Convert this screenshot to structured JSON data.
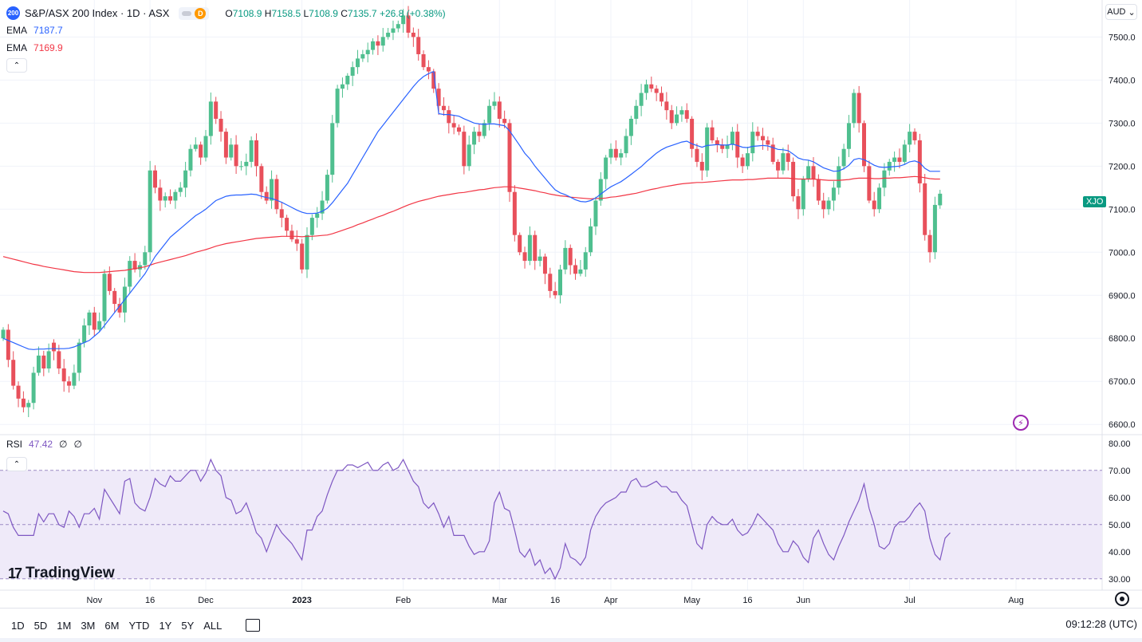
{
  "header": {
    "badge": "200",
    "title": "S&P/ASX 200 Index · 1D · ASX",
    "interval_icon": "D",
    "ohlc": {
      "o_label": "O",
      "o": "7108.9",
      "h_label": "H",
      "h": "7158.5",
      "l_label": "L",
      "l": "7108.9",
      "c_label": "C",
      "c": "7135.7",
      "change": "+26.8 (+0.38%)"
    },
    "ema1_label": "EMA",
    "ema1_value": "7187.7",
    "ema2_label": "EMA",
    "ema2_value": "7169.9",
    "collapse_glyph": "⌃"
  },
  "currency": {
    "label": "AUD",
    "arrow": "⌄"
  },
  "symbol_tag": "XJO",
  "rsi_legend": {
    "label": "RSI",
    "value": "47.42",
    "extra1": "∅",
    "extra2": "∅"
  },
  "brand": {
    "mark": "17",
    "name": "TradingView"
  },
  "bottom": {
    "ranges": [
      "1D",
      "5D",
      "1M",
      "3M",
      "6M",
      "YTD",
      "1Y",
      "5Y",
      "ALL"
    ],
    "clock": "09:12:28 (UTC)"
  },
  "colors": {
    "up": "#089981",
    "up_fill": "#4fbf8f",
    "down": "#f23645",
    "down_fill": "#e8505b",
    "ema_fast": "#2962ff",
    "ema_slow": "#f23645",
    "rsi": "#7e57c2",
    "rsi_band": "#efeaf9"
  },
  "icons": {
    "brand": "tradingview-logo-icon",
    "alert": "lightning-icon",
    "settings": "gear-icon",
    "calendar": "calendar-icon"
  },
  "chart_data": [
    {
      "type": "candlestick",
      "y_ticks": [
        6600,
        6700,
        6800,
        6900,
        7000,
        7100,
        7200,
        7300,
        7400,
        7500
      ],
      "y_tick_labels": [
        "6600.0",
        "6700.0",
        "6800.0",
        "6900.0",
        "7000.0",
        "7100.0",
        "7200.0",
        "7300.0",
        "7400.0",
        "7500.0"
      ],
      "ylim": [
        6580,
        7560
      ],
      "x_ticks": [
        {
          "label": "Nov",
          "bar": 18
        },
        {
          "label": "16",
          "bar": 29
        },
        {
          "label": "Dec",
          "bar": 40
        },
        {
          "label": "2023",
          "bar": 59
        },
        {
          "label": "Feb",
          "bar": 79
        },
        {
          "label": "Mar",
          "bar": 98
        },
        {
          "label": "16",
          "bar": 109
        },
        {
          "label": "Apr",
          "bar": 120
        },
        {
          "label": "May",
          "bar": 136
        },
        {
          "label": "16",
          "bar": 147
        },
        {
          "label": "Jun",
          "bar": 158
        },
        {
          "label": "Jul",
          "bar": 179
        },
        {
          "label": "Aug",
          "bar": 200
        }
      ],
      "close": [
        6820,
        6750,
        6690,
        6660,
        6640,
        6650,
        6720,
        6760,
        6730,
        6770,
        6770,
        6730,
        6700,
        6690,
        6720,
        6790,
        6830,
        6860,
        6820,
        6840,
        6950,
        6910,
        6880,
        6860,
        6920,
        6980,
        6960,
        6970,
        7000,
        7190,
        7150,
        7120,
        7130,
        7120,
        7140,
        7150,
        7190,
        7240,
        7250,
        7220,
        7270,
        7350,
        7310,
        7280,
        7220,
        7250,
        7200,
        7200,
        7210,
        7260,
        7200,
        7140,
        7120,
        7170,
        7100,
        7080,
        7050,
        7030,
        7020,
        6960,
        7040,
        7080,
        7090,
        7120,
        7180,
        7300,
        7380,
        7390,
        7410,
        7430,
        7450,
        7460,
        7470,
        7490,
        7480,
        7500,
        7510,
        7520,
        7530,
        7550,
        7510,
        7500,
        7460,
        7430,
        7420,
        7380,
        7340,
        7330,
        7300,
        7290,
        7280,
        7200,
        7250,
        7280,
        7270,
        7300,
        7340,
        7350,
        7310,
        7300,
        7140,
        7040,
        7000,
        6980,
        7040,
        6980,
        6990,
        6950,
        6910,
        6900,
        6960,
        7010,
        6970,
        6950,
        6960,
        7000,
        7060,
        7120,
        7170,
        7220,
        7240,
        7220,
        7230,
        7270,
        7310,
        7340,
        7370,
        7390,
        7380,
        7370,
        7350,
        7330,
        7300,
        7320,
        7330,
        7310,
        7240,
        7210,
        7190,
        7290,
        7260,
        7250,
        7240,
        7250,
        7280,
        7220,
        7200,
        7230,
        7280,
        7270,
        7260,
        7250,
        7210,
        7190,
        7230,
        7210,
        7130,
        7100,
        7170,
        7200,
        7170,
        7120,
        7100,
        7120,
        7150,
        7200,
        7240,
        7300,
        7370,
        7300,
        7200,
        7120,
        7100,
        7150,
        7190,
        7210,
        7220,
        7210,
        7250,
        7280,
        7260,
        7160,
        7040,
        7000,
        7110,
        7136
      ],
      "open": [
        6800,
        6820,
        6750,
        6690,
        6660,
        6640,
        6650,
        6720,
        6760,
        6730,
        6790,
        6770,
        6730,
        6700,
        6690,
        6720,
        6790,
        6830,
        6860,
        6820,
        6840,
        6950,
        6910,
        6880,
        6860,
        6920,
        6980,
        6960,
        6970,
        7000,
        7190,
        7150,
        7120,
        7130,
        7120,
        7140,
        7150,
        7190,
        7240,
        7250,
        7220,
        7270,
        7350,
        7310,
        7280,
        7220,
        7250,
        7200,
        7200,
        7210,
        7260,
        7200,
        7140,
        7120,
        7170,
        7100,
        7080,
        7050,
        7030,
        7020,
        6960,
        7040,
        7080,
        7090,
        7120,
        7180,
        7300,
        7380,
        7390,
        7410,
        7430,
        7450,
        7460,
        7470,
        7490,
        7480,
        7500,
        7510,
        7520,
        7530,
        7550,
        7510,
        7500,
        7460,
        7430,
        7420,
        7380,
        7340,
        7330,
        7300,
        7290,
        7280,
        7200,
        7250,
        7280,
        7270,
        7300,
        7340,
        7350,
        7310,
        7300,
        7140,
        7040,
        7000,
        6980,
        7040,
        6980,
        6990,
        6950,
        6910,
        6900,
        6960,
        7010,
        6970,
        6950,
        6960,
        7000,
        7060,
        7120,
        7170,
        7220,
        7240,
        7220,
        7230,
        7270,
        7310,
        7340,
        7370,
        7390,
        7380,
        7370,
        7350,
        7330,
        7300,
        7320,
        7330,
        7310,
        7240,
        7210,
        7190,
        7290,
        7260,
        7250,
        7240,
        7250,
        7280,
        7220,
        7200,
        7230,
        7280,
        7270,
        7260,
        7250,
        7210,
        7190,
        7230,
        7210,
        7130,
        7100,
        7170,
        7200,
        7170,
        7120,
        7100,
        7120,
        7150,
        7200,
        7240,
        7300,
        7370,
        7300,
        7200,
        7120,
        7100,
        7150,
        7190,
        7210,
        7220,
        7210,
        7250,
        7280,
        7260,
        7160,
        7040,
        7000,
        7109
      ],
      "ema_fast": [
        6800,
        6795,
        6790,
        6785,
        6780,
        6775,
        6774,
        6775,
        6775,
        6776,
        6776,
        6776,
        6776,
        6777,
        6780,
        6785,
        6790,
        6795,
        6805,
        6815,
        6830,
        6845,
        6860,
        6875,
        6890,
        6905,
        6920,
        6935,
        6950,
        6970,
        6990,
        7005,
        7020,
        7035,
        7045,
        7055,
        7065,
        7075,
        7085,
        7092,
        7100,
        7110,
        7120,
        7125,
        7130,
        7132,
        7133,
        7133,
        7134,
        7135,
        7134,
        7130,
        7127,
        7125,
        7121,
        7116,
        7110,
        7104,
        7098,
        7093,
        7090,
        7090,
        7091,
        7095,
        7102,
        7115,
        7130,
        7145,
        7160,
        7180,
        7200,
        7220,
        7240,
        7260,
        7280,
        7295,
        7310,
        7325,
        7340,
        7355,
        7370,
        7385,
        7398,
        7408,
        7415,
        7420,
        7322,
        7320,
        7320,
        7318,
        7316,
        7310,
        7305,
        7300,
        7298,
        7297,
        7298,
        7298,
        7296,
        7294,
        7282,
        7265,
        7248,
        7230,
        7217,
        7200,
        7186,
        7172,
        7158,
        7145,
        7138,
        7134,
        7128,
        7122,
        7118,
        7117,
        7120,
        7126,
        7135,
        7144,
        7152,
        7158,
        7164,
        7172,
        7181,
        7190,
        7199,
        7210,
        7220,
        7230,
        7238,
        7244,
        7248,
        7252,
        7256,
        7258,
        7252,
        7248,
        7244,
        7248,
        7249,
        7250,
        7249,
        7249,
        7251,
        7248,
        7244,
        7243,
        7246,
        7247,
        7248,
        7247,
        7243,
        7239,
        7238,
        7236,
        7228,
        7219,
        7215,
        7214,
        7210,
        7203,
        7196,
        7192,
        7188,
        7189,
        7194,
        7202,
        7215,
        7218,
        7215,
        7209,
        7202,
        7198,
        7197,
        7198,
        7199,
        7200,
        7204,
        7210,
        7212,
        7208,
        7195,
        7188,
        7188,
        7188
      ],
      "ema_slow": [
        6990,
        6987,
        6984,
        6981,
        6978,
        6975,
        6972,
        6970,
        6967,
        6965,
        6963,
        6961,
        6959,
        6957,
        6955,
        6954,
        6953,
        6953,
        6953,
        6953,
        6954,
        6955,
        6956,
        6957,
        6958,
        6960,
        6962,
        6964,
        6966,
        6970,
        6974,
        6977,
        6980,
        6983,
        6986,
        6989,
        6992,
        6996,
        7000,
        7003,
        7006,
        7010,
        7014,
        7017,
        7020,
        7022,
        7024,
        7026,
        7028,
        7030,
        7032,
        7033,
        7034,
        7035,
        7036,
        7037,
        7037,
        7037,
        7037,
        7036,
        7037,
        7037,
        7038,
        7039,
        7040,
        7043,
        7047,
        7051,
        7055,
        7059,
        7064,
        7068,
        7073,
        7077,
        7082,
        7086,
        7091,
        7095,
        7100,
        7105,
        7110,
        7114,
        7118,
        7121,
        7124,
        7127,
        7130,
        7132,
        7134,
        7136,
        7138,
        7139,
        7141,
        7143,
        7145,
        7146,
        7148,
        7150,
        7151,
        7152,
        7152,
        7151,
        7149,
        7147,
        7145,
        7143,
        7140,
        7138,
        7135,
        7133,
        7131,
        7130,
        7128,
        7127,
        7126,
        7125,
        7124,
        7125,
        7125,
        7126,
        7128,
        7129,
        7131,
        7133,
        7135,
        7137,
        7140,
        7143,
        7146,
        7148,
        7151,
        7153,
        7155,
        7157,
        7159,
        7160,
        7161,
        7162,
        7162,
        7163,
        7164,
        7165,
        7166,
        7167,
        7168,
        7168,
        7168,
        7169,
        7169,
        7170,
        7171,
        7172,
        7172,
        7172,
        7172,
        7172,
        7171,
        7170,
        7170,
        7170,
        7170,
        7169,
        7168,
        7167,
        7167,
        7167,
        7168,
        7169,
        7171,
        7172,
        7172,
        7172,
        7171,
        7171,
        7172,
        7172,
        7173,
        7173,
        7174,
        7175,
        7176,
        7175,
        7173,
        7171,
        7170,
        7170
      ]
    },
    {
      "type": "line",
      "name": "RSI",
      "y_ticks": [
        30,
        40,
        50,
        60,
        70,
        80
      ],
      "y_tick_labels": [
        "30.00",
        "40.00",
        "50.00",
        "60.00",
        "70.00",
        "80.00"
      ],
      "ylim": [
        27,
        82
      ],
      "bands": {
        "upper": 70,
        "middle": 50,
        "lower": 30
      },
      "values": [
        55,
        54,
        49,
        46,
        46,
        46,
        46,
        54,
        51,
        54,
        54,
        50,
        49,
        55,
        53,
        49,
        54,
        54,
        56,
        52,
        63,
        60,
        57,
        54,
        66,
        67,
        58,
        56,
        55,
        60,
        67,
        65,
        64,
        68,
        66,
        66,
        68,
        70,
        70,
        66,
        69,
        74,
        70,
        68,
        60,
        59,
        54,
        55,
        58,
        53,
        47,
        45,
        40,
        45,
        50,
        47,
        45,
        43,
        40,
        37,
        48,
        48,
        53,
        55,
        61,
        66,
        70,
        70,
        72,
        72,
        71,
        72,
        73,
        70,
        70,
        72,
        73,
        70,
        71,
        74,
        70,
        66,
        64,
        58,
        56,
        58,
        54,
        49,
        53,
        46,
        46,
        46,
        42,
        39,
        40,
        40,
        44,
        58,
        62,
        56,
        55,
        48,
        40,
        38,
        41,
        35,
        37,
        32,
        34,
        30,
        34,
        43,
        38,
        37,
        35,
        38,
        48,
        53,
        56,
        58,
        59,
        60,
        62,
        62,
        66,
        67,
        64,
        64,
        65,
        66,
        64,
        64,
        62,
        62,
        59,
        57,
        50,
        43,
        41,
        50,
        53,
        51,
        50,
        50,
        52,
        48,
        46,
        47,
        50,
        54,
        52,
        50,
        48,
        43,
        40,
        40,
        44,
        42,
        38,
        36,
        45,
        48,
        43,
        39,
        37,
        42,
        46,
        51,
        55,
        59,
        65,
        56,
        50,
        42,
        41,
        43,
        49,
        51,
        51,
        53,
        56,
        58,
        55,
        45,
        39,
        37,
        45,
        47
      ]
    }
  ]
}
